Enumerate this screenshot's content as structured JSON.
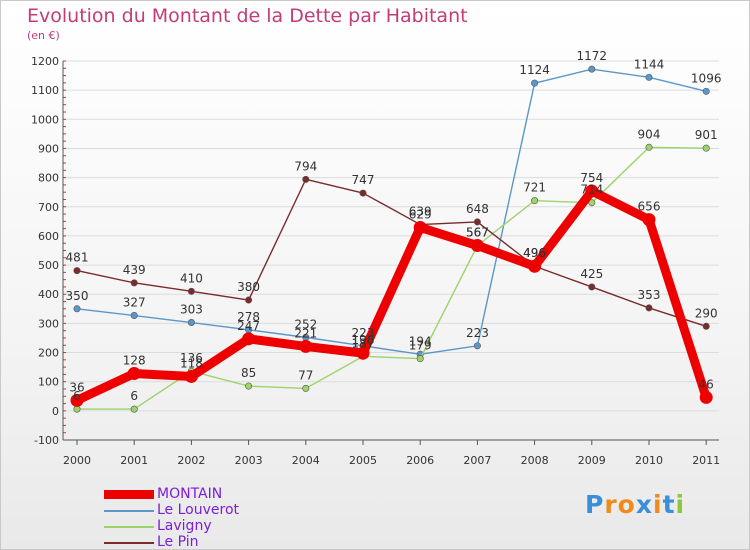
{
  "title": "Evolution du Montant de la Dette par Habitant",
  "subtitle": "(en €)",
  "brand": "Proxiti",
  "chart_data": {
    "type": "line",
    "title": "Evolution du Montant de la Dette par Habitant",
    "ylabel": "(en €)",
    "x": [
      "2000",
      "2001",
      "2002",
      "2003",
      "2004",
      "2005",
      "2006",
      "2007",
      "2008",
      "2009",
      "2010",
      "2011"
    ],
    "ylim": [
      -100,
      1200
    ],
    "yticks": [
      -100,
      0,
      100,
      200,
      300,
      400,
      500,
      600,
      700,
      800,
      900,
      1000,
      1100,
      1200
    ],
    "grid": "horizontal",
    "legend_position": "bottom-left",
    "series": [
      {
        "name": "Le Louverot",
        "color": "#5b97c9",
        "values": [
          350,
          327,
          303,
          278,
          252,
          223,
          194,
          223,
          1124,
          1172,
          1144,
          1096
        ],
        "labels": [
          "350",
          "327",
          "303",
          "278",
          "252",
          "223",
          "194",
          "223",
          "1124",
          "1172",
          "1144",
          "1096"
        ]
      },
      {
        "name": "Lavigny",
        "color": "#9dd36b",
        "values": [
          6,
          6,
          136,
          85,
          77,
          187,
          179,
          567,
          721,
          714,
          904,
          901
        ],
        "labels": [
          "6",
          "6",
          "136",
          "85",
          "77",
          "187",
          "179",
          "567",
          "721",
          "714",
          "904",
          "901"
        ]
      },
      {
        "name": "Le Pin",
        "color": "#7b2b2b",
        "values": [
          481,
          439,
          410,
          380,
          794,
          747,
          639,
          648,
          496,
          425,
          353,
          290
        ],
        "labels": [
          "481",
          "439",
          "410",
          "380",
          "794",
          "747",
          "639",
          "648",
          "496",
          "425",
          "353",
          "290"
        ]
      },
      {
        "name": "MONTAIN",
        "color": "#ee0000",
        "values": [
          36,
          128,
          118,
          247,
          221,
          198,
          629,
          567,
          496,
          754,
          656,
          46
        ],
        "labels": [
          "36",
          "128",
          "118",
          "247",
          "221",
          "198",
          "629",
          "567",
          "496",
          "754",
          "656",
          "46"
        ]
      }
    ],
    "legend_order": [
      "MONTAIN",
      "Le Louverot",
      "Lavigny",
      "Le Pin"
    ]
  }
}
